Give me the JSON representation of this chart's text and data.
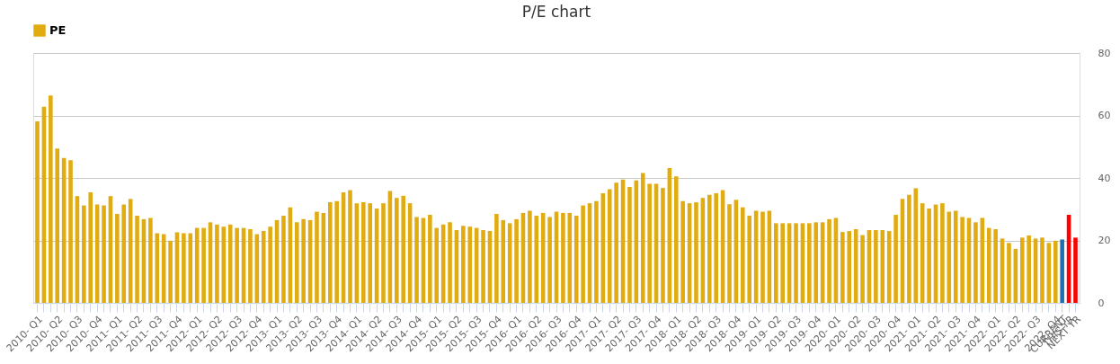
{
  "chart_data": {
    "type": "bar",
    "title": "P/E chart",
    "categories": [
      "2010- Q1",
      null,
      null,
      "2010- Q2",
      null,
      null,
      "2010- Q3",
      null,
      null,
      "2010- Q4",
      null,
      null,
      "2011- Q1",
      null,
      null,
      "2011- Q2",
      null,
      null,
      "2011- Q3",
      null,
      null,
      "2011- Q4",
      null,
      null,
      "2012- Q1",
      null,
      null,
      "2012- Q2",
      null,
      null,
      "2012- Q3",
      null,
      null,
      "2012- Q4",
      null,
      null,
      "2013- Q1",
      null,
      null,
      "2013- Q2",
      null,
      null,
      "2013- Q3",
      null,
      null,
      "2013- Q4",
      null,
      null,
      "2014- Q1",
      null,
      null,
      "2014- Q2",
      null,
      null,
      "2014- Q3",
      null,
      null,
      "2014- Q4",
      null,
      null,
      "2015- Q1",
      null,
      null,
      "2015- Q2",
      null,
      null,
      "2015- Q3",
      null,
      null,
      "2015- Q4",
      null,
      null,
      "2016- Q1",
      null,
      null,
      "2016- Q2",
      null,
      null,
      "2016- Q3",
      null,
      null,
      "2016- Q4",
      null,
      null,
      "2017- Q1",
      null,
      null,
      "2017- Q2",
      null,
      null,
      "2017- Q3",
      null,
      null,
      "2017- Q4",
      null,
      null,
      "2018- Q1",
      null,
      null,
      "2018- Q2",
      null,
      null,
      "2018- Q3",
      null,
      null,
      "2018- Q4",
      null,
      null,
      "2019- Q1",
      null,
      null,
      "2019- Q2",
      null,
      null,
      "2019- Q3",
      null,
      null,
      "2019- Q4",
      null,
      null,
      "2020- Q1",
      null,
      null,
      "2020- Q2",
      null,
      null,
      "2020- Q3",
      null,
      null,
      "2020- Q4",
      null,
      null,
      "2021- Q1",
      null,
      null,
      "2021- Q2",
      null,
      null,
      "2021- Q3",
      null,
      null,
      "2021- Q4",
      null,
      null,
      "2022- Q1",
      null,
      null,
      "2022- Q2",
      null,
      null,
      "2022- Q3",
      null,
      null,
      "2022- Q4",
      "CURRENT",
      "THIS YR",
      "NEXT YR"
    ],
    "series": [
      {
        "name": "PE",
        "color": "#e1ab12",
        "values": [
          58.1,
          62.8,
          66.4,
          49.4,
          46.4,
          45.7,
          34.2,
          31.2,
          35.4,
          31.5,
          31.2,
          34.2,
          28.5,
          31.5,
          33.3,
          27.9,
          26.8,
          27.2,
          22.3,
          22.0,
          19.9,
          22.6,
          22.3,
          22.3,
          24.0,
          24.0,
          25.8,
          25.1,
          24.4,
          25.1,
          24.0,
          24.0,
          23.6,
          22.0,
          23.0,
          24.4,
          26.5,
          27.9,
          30.6,
          25.8,
          26.8,
          26.5,
          29.2,
          28.8,
          32.2,
          32.6,
          35.4,
          36.1,
          31.9,
          32.2,
          31.9,
          30.2,
          31.9,
          35.8,
          33.6,
          34.3,
          31.9,
          27.5,
          27.2,
          28.2,
          24.0,
          25.1,
          25.8,
          23.3,
          24.7,
          24.4,
          24.0,
          23.3,
          23.0,
          28.5,
          26.5,
          25.5,
          26.8,
          28.8,
          29.5,
          27.9,
          28.8,
          27.5,
          29.2,
          28.8,
          28.8,
          27.9,
          31.2,
          31.9,
          32.6,
          35.1,
          36.4,
          38.5,
          39.5,
          37.1,
          39.2,
          41.6,
          38.1,
          38.1,
          36.8,
          43.2,
          40.5,
          32.6,
          31.9,
          32.2,
          33.6,
          34.6,
          35.1,
          36.1,
          31.6,
          33.0,
          30.6,
          27.9,
          29.5,
          29.2,
          29.5,
          25.5,
          25.5,
          25.5,
          25.5,
          25.5,
          25.5,
          25.8,
          25.8,
          26.8,
          27.2,
          22.7,
          23.0,
          23.6,
          21.7,
          23.3,
          23.3,
          23.3,
          23.0,
          28.2,
          33.3,
          34.6,
          36.7,
          31.9,
          30.2,
          31.5,
          31.9,
          29.2,
          29.5,
          27.5,
          27.2,
          25.8,
          27.2,
          24.0,
          23.6,
          20.6,
          19.2,
          17.3,
          20.9,
          21.6,
          20.6,
          20.9,
          19.2,
          19.9,
          20.3,
          28.2,
          20.9
        ],
        "colors": [
          "#e1ab12",
          "#e1ab12",
          "#e1ab12",
          "#e1ab12",
          "#e1ab12",
          "#e1ab12",
          "#e1ab12",
          "#e1ab12",
          "#e1ab12",
          "#e1ab12",
          "#e1ab12",
          "#e1ab12",
          "#e1ab12",
          "#e1ab12",
          "#e1ab12",
          "#e1ab12",
          "#e1ab12",
          "#e1ab12",
          "#e1ab12",
          "#e1ab12",
          "#e1ab12",
          "#e1ab12",
          "#e1ab12",
          "#e1ab12",
          "#e1ab12",
          "#e1ab12",
          "#e1ab12",
          "#e1ab12",
          "#e1ab12",
          "#e1ab12",
          "#e1ab12",
          "#e1ab12",
          "#e1ab12",
          "#e1ab12",
          "#e1ab12",
          "#e1ab12",
          "#e1ab12",
          "#e1ab12",
          "#e1ab12",
          "#e1ab12",
          "#e1ab12",
          "#e1ab12",
          "#e1ab12",
          "#e1ab12",
          "#e1ab12",
          "#e1ab12",
          "#e1ab12",
          "#e1ab12",
          "#e1ab12",
          "#e1ab12",
          "#e1ab12",
          "#e1ab12",
          "#e1ab12",
          "#e1ab12",
          "#e1ab12",
          "#e1ab12",
          "#e1ab12",
          "#e1ab12",
          "#e1ab12",
          "#e1ab12",
          "#e1ab12",
          "#e1ab12",
          "#e1ab12",
          "#e1ab12",
          "#e1ab12",
          "#e1ab12",
          "#e1ab12",
          "#e1ab12",
          "#e1ab12",
          "#e1ab12",
          "#e1ab12",
          "#e1ab12",
          "#e1ab12",
          "#e1ab12",
          "#e1ab12",
          "#e1ab12",
          "#e1ab12",
          "#e1ab12",
          "#e1ab12",
          "#e1ab12",
          "#e1ab12",
          "#e1ab12",
          "#e1ab12",
          "#e1ab12",
          "#e1ab12",
          "#e1ab12",
          "#e1ab12",
          "#e1ab12",
          "#e1ab12",
          "#e1ab12",
          "#e1ab12",
          "#e1ab12",
          "#e1ab12",
          "#e1ab12",
          "#e1ab12",
          "#e1ab12",
          "#e1ab12",
          "#e1ab12",
          "#e1ab12",
          "#e1ab12",
          "#e1ab12",
          "#e1ab12",
          "#e1ab12",
          "#e1ab12",
          "#e1ab12",
          "#e1ab12",
          "#e1ab12",
          "#e1ab12",
          "#e1ab12",
          "#e1ab12",
          "#e1ab12",
          "#e1ab12",
          "#e1ab12",
          "#e1ab12",
          "#e1ab12",
          "#e1ab12",
          "#e1ab12",
          "#e1ab12",
          "#e1ab12",
          "#e1ab12",
          "#e1ab12",
          "#e1ab12",
          "#e1ab12",
          "#e1ab12",
          "#e1ab12",
          "#e1ab12",
          "#e1ab12",
          "#e1ab12",
          "#e1ab12",
          "#e1ab12",
          "#e1ab12",
          "#e1ab12",
          "#e1ab12",
          "#e1ab12",
          "#e1ab12",
          "#e1ab12",
          "#e1ab12",
          "#e1ab12",
          "#e1ab12",
          "#e1ab12",
          "#e1ab12",
          "#e1ab12",
          "#e1ab12",
          "#e1ab12",
          "#e1ab12",
          "#e1ab12",
          "#e1ab12",
          "#e1ab12",
          "#e1ab12",
          "#e1ab12",
          "#e1ab12",
          "#e1ab12",
          "#e1ab12",
          "#e1ab12",
          "#1f6eb0",
          "#ff0000",
          "#ff0000"
        ]
      }
    ],
    "ylim": [
      0,
      80
    ],
    "yticks": [
      0,
      20,
      40,
      60,
      80
    ],
    "grid": "y",
    "legend": "top"
  }
}
